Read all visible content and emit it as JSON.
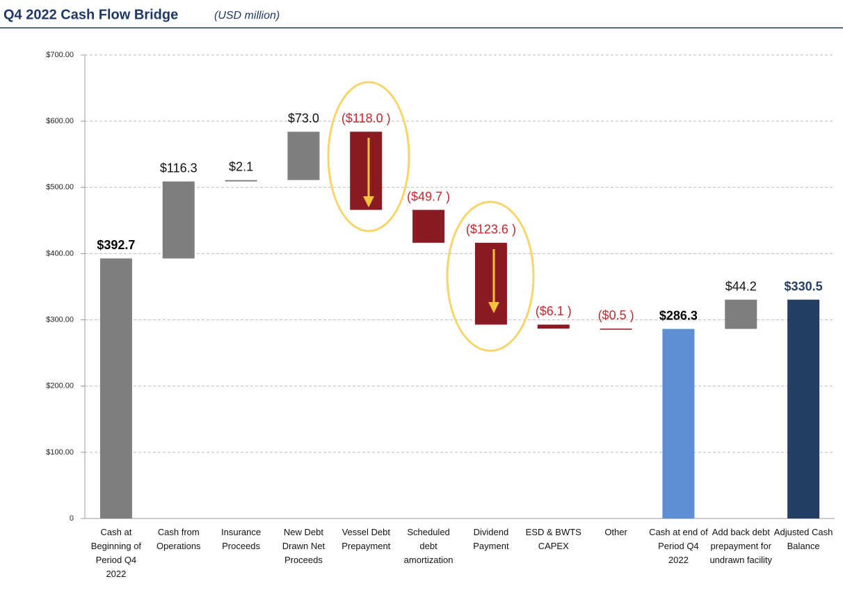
{
  "chart_data": {
    "type": "waterfall",
    "title": "Q4 2022 Cash Flow Bridge",
    "subtitle": "(USD million)",
    "categories": [
      "Cash at Beginning of Period Q4 2022",
      "Cash from Operations",
      "Insurance Proceeds",
      "New Debt Drawn Net Proceeds",
      "Vessel Debt Prepayment",
      "Scheduled debt amortization",
      "Dividend Payment",
      "ESD & BWTS CAPEX",
      "Other",
      "Cash at end of Period Q4 2022",
      "Add back debt prepayment for undrawn facility",
      "Adjusted Cash Balance"
    ],
    "values": [
      392.7,
      116.3,
      2.1,
      73.0,
      -118.0,
      -49.7,
      -123.6,
      -6.1,
      -0.5,
      286.3,
      44.2,
      330.5
    ],
    "value_labels": [
      "$392.7",
      "$116.3",
      "$2.1",
      "$73.0",
      "($118.0 )",
      "($49.7 )",
      "($123.6 )",
      "($6.1 )",
      "($0.5 )",
      "$286.3",
      "$44.2",
      "$330.5"
    ],
    "is_total": [
      true,
      false,
      false,
      false,
      false,
      false,
      false,
      false,
      false,
      true,
      false,
      true
    ],
    "colors": [
      "#7f7f7f",
      "#7f7f7f",
      "#7f7f7f",
      "#7f7f7f",
      "#8b1a22",
      "#8b1a22",
      "#8b1a22",
      "#8b1a22",
      "#8b1a22",
      "#5f8fd3",
      "#7f7f7f",
      "#243e64"
    ],
    "label_colors": [
      "#000000",
      "#111111",
      "#111111",
      "#111111",
      "#c0282d",
      "#c0282d",
      "#c0282d",
      "#c0282d",
      "#c0282d",
      "#000000",
      "#111111",
      "#243e64"
    ],
    "ylim": [
      0,
      700
    ],
    "yticks": [
      0,
      {
        "value": 100,
        "label": "$100.00"
      },
      {
        "value": 200,
        "label": "$200.00"
      },
      {
        "value": 300,
        "label": "$300.00"
      },
      {
        "value": 400,
        "label": "$400.00"
      },
      {
        "value": 500,
        "label": "$500.00"
      },
      {
        "value": 600,
        "label": "$600.00"
      },
      {
        "value": 700,
        "label": "$700.00"
      }
    ],
    "grid": true
  }
}
